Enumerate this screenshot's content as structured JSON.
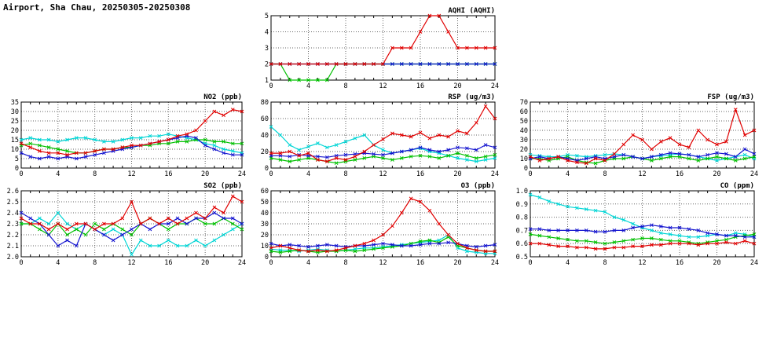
{
  "page": {
    "title": "Airport, Sha Chau, 20250305-20250308"
  },
  "colors": {
    "red": "#e00000",
    "blue": "#1515cf",
    "green": "#00c000",
    "cyan": "#00d5d5"
  },
  "chart_data": [
    {
      "type": "line",
      "title": "AQHI (AQHI)",
      "xlabel": "",
      "ylabel": "",
      "xlim": [
        0,
        24
      ],
      "xticks": [
        0,
        4,
        8,
        12,
        16,
        20,
        24
      ],
      "ylim": [
        1,
        5
      ],
      "ytick_step": 1,
      "y_decimals": 0,
      "grid": true,
      "legend": "none",
      "series": [
        {
          "name": "series-red",
          "color": "#e00000",
          "values": [
            2,
            2,
            2,
            2,
            2,
            2,
            2,
            2,
            2,
            2,
            2,
            2,
            2,
            3,
            3,
            3,
            4,
            5,
            5,
            4,
            3,
            3,
            3,
            3,
            3
          ]
        },
        {
          "name": "series-blue",
          "color": "#1515cf",
          "values": [
            2,
            2,
            2,
            2,
            2,
            2,
            2,
            2,
            2,
            2,
            2,
            2,
            2,
            2,
            2,
            2,
            2,
            2,
            2,
            2,
            2,
            2,
            2,
            2,
            2
          ]
        },
        {
          "name": "series-green",
          "color": "#00c000",
          "values": [
            2,
            2,
            1,
            1,
            1,
            1,
            1,
            2,
            2,
            2,
            2,
            2,
            2,
            2,
            2,
            2,
            2,
            2,
            2,
            2,
            2,
            2,
            2,
            2,
            2
          ]
        },
        {
          "name": "series-cyan",
          "color": "#00d5d5",
          "values": [
            2,
            2,
            2,
            2,
            2,
            2,
            2,
            2,
            2,
            2,
            2,
            2,
            2,
            2,
            2,
            2,
            2,
            2,
            2,
            2,
            2,
            2,
            2,
            2,
            2
          ]
        }
      ]
    },
    {
      "type": "line",
      "title": "NO2 (ppb)",
      "xlabel": "",
      "ylabel": "",
      "xlim": [
        0,
        24
      ],
      "xticks": [
        0,
        4,
        8,
        12,
        16,
        20,
        24
      ],
      "ylim": [
        0,
        35
      ],
      "ytick_step": 5,
      "y_decimals": 0,
      "grid": true,
      "legend": "none",
      "series": [
        {
          "name": "series-red",
          "color": "#e00000",
          "values": [
            13,
            11,
            9,
            8,
            8,
            7,
            8,
            8,
            9,
            10,
            10,
            11,
            12,
            12,
            13,
            14,
            15,
            17,
            18,
            20,
            25,
            30,
            28,
            31,
            30
          ]
        },
        {
          "name": "series-blue",
          "color": "#1515cf",
          "values": [
            8,
            6,
            5,
            6,
            5,
            6,
            5,
            6,
            7,
            8,
            9,
            10,
            11,
            12,
            13,
            14,
            15,
            16,
            17,
            16,
            12,
            10,
            8,
            7,
            7
          ]
        },
        {
          "name": "series-green",
          "color": "#00c000",
          "values": [
            12,
            13,
            12,
            11,
            10,
            9,
            8,
            8,
            9,
            10,
            10,
            11,
            11,
            12,
            12,
            13,
            13,
            14,
            14,
            15,
            15,
            14,
            14,
            13,
            13
          ]
        },
        {
          "name": "series-cyan",
          "color": "#00d5d5",
          "values": [
            15,
            16,
            15,
            15,
            14,
            15,
            16,
            16,
            15,
            14,
            14,
            15,
            16,
            16,
            17,
            17,
            18,
            17,
            16,
            15,
            13,
            12,
            10,
            9,
            8
          ]
        }
      ]
    },
    {
      "type": "line",
      "title": "RSP (ug/m3)",
      "xlabel": "",
      "ylabel": "",
      "xlim": [
        0,
        24
      ],
      "xticks": [
        0,
        4,
        8,
        12,
        16,
        20,
        24
      ],
      "ylim": [
        0,
        80
      ],
      "ytick_step": 20,
      "y_decimals": 0,
      "grid": true,
      "legend": "none",
      "series": [
        {
          "name": "series-red",
          "color": "#e00000",
          "values": [
            18,
            18,
            20,
            15,
            18,
            10,
            8,
            12,
            10,
            14,
            20,
            28,
            35,
            42,
            40,
            38,
            43,
            36,
            40,
            38,
            45,
            42,
            55,
            75,
            60
          ]
        },
        {
          "name": "series-blue",
          "color": "#1515cf",
          "values": [
            15,
            15,
            14,
            16,
            15,
            14,
            13,
            15,
            16,
            17,
            18,
            17,
            16,
            18,
            20,
            22,
            25,
            22,
            20,
            22,
            25,
            24,
            22,
            28,
            25
          ]
        },
        {
          "name": "series-green",
          "color": "#00c000",
          "values": [
            12,
            10,
            8,
            10,
            12,
            10,
            8,
            6,
            8,
            10,
            12,
            14,
            12,
            10,
            12,
            14,
            15,
            14,
            12,
            15,
            18,
            15,
            12,
            14,
            16
          ]
        },
        {
          "name": "series-cyan",
          "color": "#00d5d5",
          "values": [
            50,
            40,
            28,
            22,
            26,
            30,
            25,
            28,
            32,
            36,
            40,
            28,
            22,
            18,
            20,
            22,
            24,
            20,
            18,
            15,
            12,
            10,
            8,
            10,
            12
          ]
        }
      ]
    },
    {
      "type": "line",
      "title": "FSP (ug/m3)",
      "xlabel": "",
      "ylabel": "",
      "xlim": [
        0,
        24
      ],
      "xticks": [
        0,
        4,
        8,
        12,
        16,
        20,
        24
      ],
      "ylim": [
        0,
        70
      ],
      "ytick_step": 10,
      "y_decimals": 0,
      "grid": true,
      "legend": "none",
      "series": [
        {
          "name": "series-red",
          "color": "#e00000",
          "values": [
            12,
            8,
            10,
            12,
            8,
            6,
            5,
            10,
            8,
            15,
            25,
            35,
            30,
            20,
            28,
            32,
            25,
            22,
            40,
            30,
            25,
            28,
            62,
            35,
            40
          ]
        },
        {
          "name": "series-blue",
          "color": "#1515cf",
          "values": [
            10,
            12,
            10,
            12,
            10,
            8,
            10,
            12,
            10,
            12,
            14,
            12,
            10,
            12,
            14,
            16,
            15,
            14,
            12,
            14,
            16,
            15,
            12,
            20,
            15
          ]
        },
        {
          "name": "series-green",
          "color": "#00c000",
          "values": [
            10,
            10,
            8,
            10,
            12,
            8,
            6,
            5,
            8,
            10,
            10,
            12,
            10,
            8,
            10,
            12,
            12,
            10,
            8,
            10,
            12,
            10,
            8,
            10,
            12
          ]
        },
        {
          "name": "series-cyan",
          "color": "#00d5d5",
          "values": [
            14,
            13,
            12,
            12,
            14,
            13,
            12,
            13,
            14,
            15,
            14,
            12,
            10,
            12,
            13,
            14,
            15,
            14,
            12,
            10,
            8,
            10,
            12,
            14,
            10
          ]
        }
      ]
    },
    {
      "type": "line",
      "title": "SO2 (ppb)",
      "xlabel": "",
      "ylabel": "",
      "xlim": [
        0,
        24
      ],
      "xticks": [
        0,
        4,
        8,
        12,
        16,
        20,
        24
      ],
      "ylim": [
        2.0,
        2.6
      ],
      "ytick_step": 0.1,
      "y_decimals": 1,
      "grid": true,
      "legend": "none",
      "series": [
        {
          "name": "series-red",
          "color": "#e00000",
          "values": [
            2.35,
            2.3,
            2.3,
            2.25,
            2.3,
            2.25,
            2.3,
            2.3,
            2.25,
            2.3,
            2.3,
            2.35,
            2.5,
            2.3,
            2.35,
            2.3,
            2.35,
            2.3,
            2.35,
            2.4,
            2.35,
            2.45,
            2.4,
            2.55,
            2.5
          ]
        },
        {
          "name": "series-blue",
          "color": "#1515cf",
          "values": [
            2.4,
            2.35,
            2.3,
            2.2,
            2.1,
            2.15,
            2.1,
            2.3,
            2.25,
            2.2,
            2.15,
            2.2,
            2.25,
            2.3,
            2.25,
            2.3,
            2.3,
            2.35,
            2.3,
            2.35,
            2.35,
            2.4,
            2.35,
            2.35,
            2.3
          ]
        },
        {
          "name": "series-green",
          "color": "#00c000",
          "values": [
            2.3,
            2.3,
            2.25,
            2.2,
            2.3,
            2.2,
            2.25,
            2.2,
            2.3,
            2.25,
            2.3,
            2.25,
            2.2,
            2.3,
            2.35,
            2.3,
            2.25,
            2.3,
            2.3,
            2.35,
            2.3,
            2.3,
            2.35,
            2.3,
            2.25
          ]
        },
        {
          "name": "series-cyan",
          "color": "#00d5d5",
          "values": [
            2.3,
            2.3,
            2.35,
            2.3,
            2.4,
            2.3,
            2.25,
            2.3,
            2.25,
            2.2,
            2.25,
            2.2,
            2.02,
            2.15,
            2.1,
            2.1,
            2.15,
            2.1,
            2.1,
            2.15,
            2.1,
            2.15,
            2.2,
            2.25,
            2.3
          ]
        }
      ]
    },
    {
      "type": "line",
      "title": "O3 (ppb)",
      "xlabel": "",
      "ylabel": "",
      "xlim": [
        0,
        24
      ],
      "xticks": [
        0,
        4,
        8,
        12,
        16,
        20,
        24
      ],
      "ylim": [
        0,
        60
      ],
      "ytick_step": 10,
      "y_decimals": 0,
      "grid": true,
      "legend": "none",
      "series": [
        {
          "name": "series-red",
          "color": "#e00000",
          "values": [
            8,
            10,
            8,
            6,
            5,
            6,
            5,
            6,
            8,
            10,
            12,
            15,
            20,
            28,
            40,
            53,
            50,
            42,
            30,
            20,
            12,
            8,
            6,
            5,
            5
          ]
        },
        {
          "name": "series-blue",
          "color": "#1515cf",
          "values": [
            12,
            10,
            11,
            10,
            9,
            10,
            11,
            10,
            9,
            10,
            10,
            11,
            12,
            11,
            10,
            10,
            11,
            12,
            12,
            13,
            12,
            10,
            9,
            10,
            11
          ]
        },
        {
          "name": "series-green",
          "color": "#00c000",
          "values": [
            5,
            4,
            5,
            6,
            5,
            4,
            5,
            5,
            6,
            5,
            6,
            7,
            8,
            9,
            10,
            12,
            14,
            15,
            13,
            18,
            10,
            8,
            6,
            5,
            5
          ]
        },
        {
          "name": "series-cyan",
          "color": "#00d5d5",
          "values": [
            7,
            6,
            6,
            5,
            6,
            7,
            6,
            5,
            6,
            7,
            8,
            8,
            9,
            10,
            11,
            12,
            13,
            14,
            15,
            20,
            8,
            5,
            4,
            3,
            3
          ]
        }
      ]
    },
    {
      "type": "line",
      "title": "CO (ppm)",
      "xlabel": "",
      "ylabel": "",
      "xlim": [
        0,
        24
      ],
      "xticks": [
        0,
        4,
        8,
        12,
        16,
        20,
        24
      ],
      "ylim": [
        0.5,
        1.0
      ],
      "ytick_step": 0.1,
      "y_decimals": 1,
      "grid": true,
      "legend": "none",
      "series": [
        {
          "name": "series-red",
          "color": "#e00000",
          "values": [
            0.6,
            0.6,
            0.59,
            0.58,
            0.58,
            0.57,
            0.57,
            0.56,
            0.56,
            0.57,
            0.57,
            0.58,
            0.58,
            0.59,
            0.59,
            0.6,
            0.6,
            0.6,
            0.59,
            0.6,
            0.6,
            0.61,
            0.6,
            0.62,
            0.6
          ]
        },
        {
          "name": "series-blue",
          "color": "#1515cf",
          "values": [
            0.71,
            0.71,
            0.7,
            0.7,
            0.7,
            0.7,
            0.7,
            0.69,
            0.69,
            0.7,
            0.7,
            0.72,
            0.73,
            0.74,
            0.73,
            0.72,
            0.72,
            0.71,
            0.7,
            0.68,
            0.67,
            0.66,
            0.66,
            0.65,
            0.65
          ]
        },
        {
          "name": "series-green",
          "color": "#00c000",
          "values": [
            0.67,
            0.66,
            0.65,
            0.64,
            0.63,
            0.62,
            0.62,
            0.61,
            0.6,
            0.61,
            0.62,
            0.63,
            0.64,
            0.64,
            0.63,
            0.62,
            0.62,
            0.61,
            0.6,
            0.61,
            0.62,
            0.63,
            0.65,
            0.66,
            0.67
          ]
        },
        {
          "name": "series-cyan",
          "color": "#00d5d5",
          "values": [
            0.97,
            0.95,
            0.92,
            0.9,
            0.88,
            0.87,
            0.86,
            0.85,
            0.84,
            0.8,
            0.78,
            0.75,
            0.72,
            0.7,
            0.68,
            0.67,
            0.66,
            0.65,
            0.65,
            0.66,
            0.67,
            0.66,
            0.68,
            0.67,
            0.65
          ]
        }
      ]
    }
  ]
}
